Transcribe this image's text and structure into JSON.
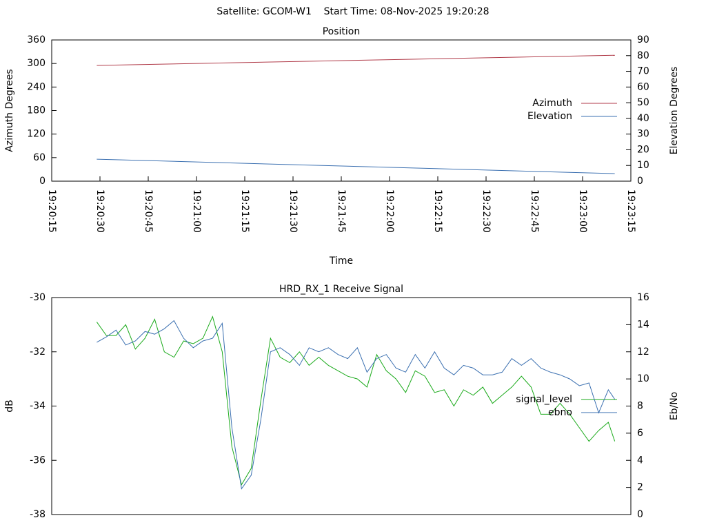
{
  "header": "Satellite: GCOM-W1    Start Time: 08-Nov-2025 19:20:28",
  "chart_data": [
    {
      "type": "line",
      "title": "Position",
      "x_label": "Time",
      "y_label": "Azimuth Degrees",
      "y2_label": "Elevation Degrees",
      "xlim": [
        "19:20:15",
        "19:23:15"
      ],
      "xticks": [
        "19:20:15",
        "19:20:30",
        "19:20:45",
        "19:21:00",
        "19:21:15",
        "19:21:30",
        "19:21:45",
        "19:22:00",
        "19:22:15",
        "19:22:30",
        "19:22:45",
        "19:23:00",
        "19:23:15"
      ],
      "ylim": [
        0,
        360
      ],
      "yticks": [
        0,
        60,
        120,
        180,
        240,
        300,
        360
      ],
      "y2lim": [
        0,
        90
      ],
      "y2ticks": [
        0,
        10,
        20,
        30,
        40,
        50,
        60,
        70,
        80,
        90
      ],
      "legend": "right",
      "x": [
        "19:20:29",
        "19:23:10"
      ],
      "series": [
        {
          "name": "Azimuth",
          "color": "#b03a48",
          "values": [
            295,
            321
          ]
        },
        {
          "name": "Elevation",
          "color": "#3a6fb0",
          "axis": "y2",
          "values": [
            14.0,
            4.8
          ]
        }
      ]
    },
    {
      "type": "line",
      "title": "HRD_RX_1 Receive Signal",
      "y_label": "dB",
      "y2_label": "Eb/No",
      "xlim": [
        "19:20:15",
        "19:23:15"
      ],
      "ylim": [
        -38,
        -30
      ],
      "yticks": [
        -38,
        -36,
        -34,
        -32,
        -30
      ],
      "y2lim": [
        0,
        16
      ],
      "y2ticks": [
        0,
        2,
        4,
        6,
        8,
        10,
        12,
        14,
        16
      ],
      "legend": "right",
      "x": [
        "19:20:29",
        "19:20:32",
        "19:20:35",
        "19:20:38",
        "19:20:41",
        "19:20:44",
        "19:20:47",
        "19:20:50",
        "19:20:53",
        "19:20:56",
        "19:20:59",
        "19:21:02",
        "19:21:05",
        "19:21:08",
        "19:21:11",
        "19:21:14",
        "19:21:17",
        "19:21:20",
        "19:21:23",
        "19:21:26",
        "19:21:29",
        "19:21:32",
        "19:21:35",
        "19:21:38",
        "19:21:41",
        "19:21:44",
        "19:21:47",
        "19:21:50",
        "19:21:53",
        "19:21:56",
        "19:21:59",
        "19:22:02",
        "19:22:05",
        "19:22:08",
        "19:22:11",
        "19:22:14",
        "19:22:17",
        "19:22:20",
        "19:22:23",
        "19:22:26",
        "19:22:29",
        "19:22:32",
        "19:22:35",
        "19:22:38",
        "19:22:41",
        "19:22:44",
        "19:22:47",
        "19:22:50",
        "19:22:53",
        "19:22:56",
        "19:22:59",
        "19:23:02",
        "19:23:05",
        "19:23:08",
        "19:23:10"
      ],
      "series": [
        {
          "name": "signal_level",
          "color": "#1aaa1a",
          "values": [
            -30.9,
            -31.4,
            -31.4,
            -31.0,
            -31.9,
            -31.5,
            -30.8,
            -32.0,
            -32.2,
            -31.6,
            -31.7,
            -31.5,
            -30.7,
            -32.0,
            -35.5,
            -36.9,
            -36.3,
            -33.8,
            -31.5,
            -32.2,
            -32.4,
            -32.0,
            -32.5,
            -32.2,
            -32.5,
            -32.7,
            -32.9,
            -33.0,
            -33.3,
            -32.1,
            -32.7,
            -33.0,
            -33.5,
            -32.7,
            -32.9,
            -33.5,
            -33.4,
            -34.0,
            -33.4,
            -33.6,
            -33.3,
            -33.9,
            -33.6,
            -33.3,
            -32.9,
            -33.3,
            -34.3,
            -34.3,
            -33.9,
            -34.3,
            -34.8,
            -35.3,
            -34.9,
            -34.6,
            -35.3
          ]
        },
        {
          "name": "ebno",
          "color": "#3a6fb0",
          "axis": "y2",
          "values": [
            12.7,
            13.1,
            13.6,
            12.5,
            12.8,
            13.5,
            13.3,
            13.7,
            14.3,
            13.0,
            12.3,
            12.8,
            13.0,
            14.1,
            6.4,
            1.9,
            2.9,
            7.0,
            12.0,
            12.3,
            11.8,
            11.0,
            12.3,
            12.0,
            12.3,
            11.8,
            11.5,
            12.3,
            10.5,
            11.5,
            11.8,
            10.8,
            10.5,
            11.8,
            10.8,
            12.0,
            10.8,
            10.3,
            11.0,
            10.8,
            10.3,
            10.3,
            10.5,
            11.5,
            11.0,
            11.5,
            10.8,
            10.5,
            10.3,
            10.0,
            9.5,
            9.7,
            7.5,
            9.2,
            8.5
          ]
        }
      ]
    }
  ]
}
